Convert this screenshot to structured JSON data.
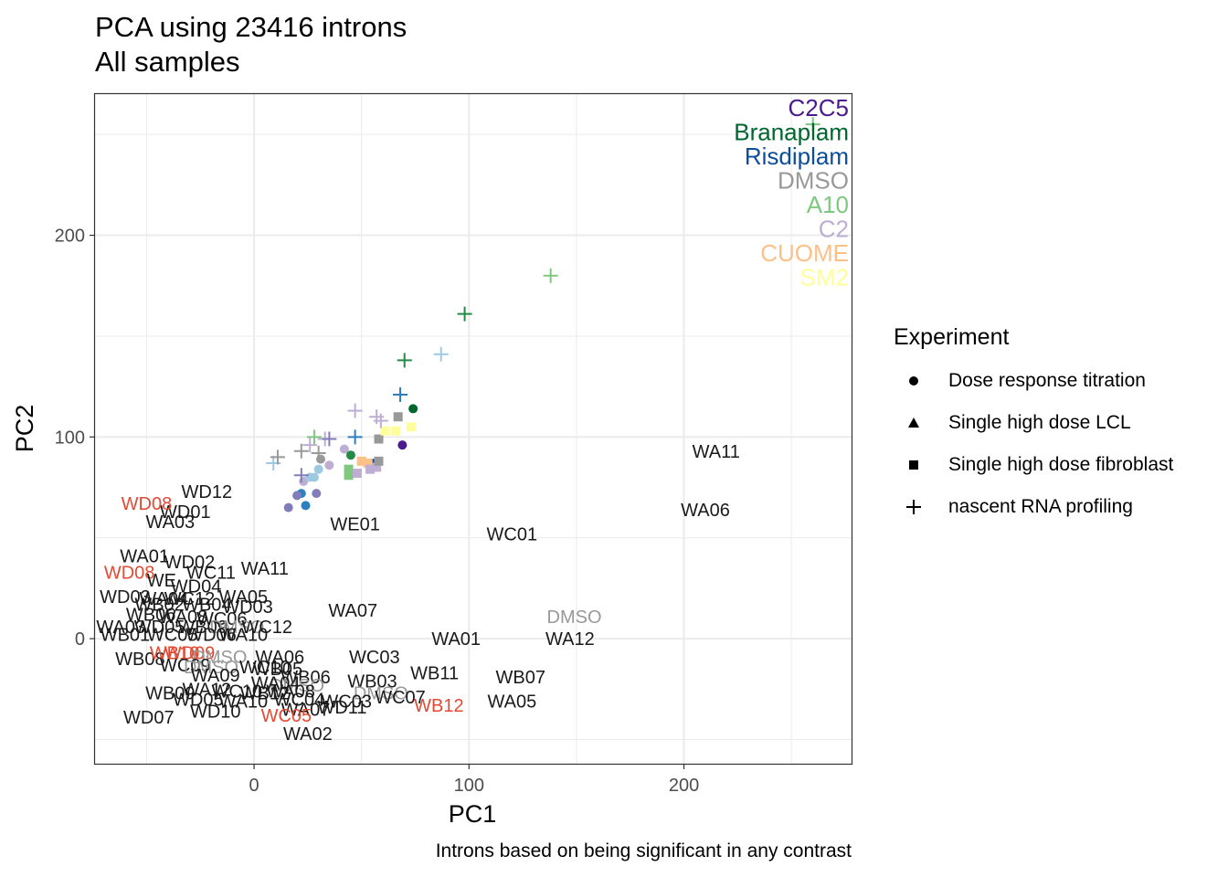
{
  "title": "PCA using 23416 introns",
  "subtitle": "All samples",
  "caption": "Introns based on being significant in any contrast",
  "chart_data": {
    "type": "scatter",
    "xlabel": "PC1",
    "ylabel": "PC2",
    "xlim": [
      -74,
      278
    ],
    "ylim": [
      -62,
      270
    ],
    "xticks": [
      0,
      100,
      200
    ],
    "yticks": [
      0,
      100,
      200
    ],
    "grid": true,
    "colors": {
      "C2C5": "#4b1a8c",
      "Branaplam": "#00662e",
      "Risdiplam": "#0d4e9a",
      "DMSO": "#999999",
      "A10": "#7fc97f",
      "C2": "#beaed4",
      "CUOME": "#fdc086",
      "SM2": "#ffff99",
      "blue": "#2d7fbf",
      "lightblue": "#9ecae1",
      "green": "#238b45",
      "purple": "#807dba",
      "text": "#1a1a1a",
      "red": "#e34a33"
    },
    "treatment_labels": [
      "C2C5",
      "Branaplam",
      "Risdiplam",
      "DMSO",
      "A10",
      "C2",
      "CUOME",
      "SM2"
    ],
    "legend": {
      "title": "Experiment",
      "entries": [
        "Dose response titration",
        "Single high dose LCL",
        "Single high dose fibroblast",
        "nascent RNA profiling"
      ],
      "position": "right"
    },
    "series": [
      {
        "name": "Dose response titration",
        "shape": "circle",
        "points": [
          {
            "x": 16,
            "y": 65,
            "c": "purple"
          },
          {
            "x": 22,
            "y": 72,
            "c": "blue"
          },
          {
            "x": 24,
            "y": 66,
            "c": "blue"
          },
          {
            "x": 29,
            "y": 72,
            "c": "purple"
          },
          {
            "x": 20,
            "y": 71,
            "c": "purple"
          },
          {
            "x": 23,
            "y": 78,
            "c": "C2"
          },
          {
            "x": 26,
            "y": 80,
            "c": "lightblue"
          },
          {
            "x": 28,
            "y": 80,
            "c": "lightblue"
          },
          {
            "x": 30,
            "y": 84,
            "c": "lightblue"
          },
          {
            "x": 31,
            "y": 89,
            "c": "DMSO"
          },
          {
            "x": 35,
            "y": 86,
            "c": "C2"
          },
          {
            "x": 42,
            "y": 94,
            "c": "C2"
          },
          {
            "x": 45,
            "y": 91,
            "c": "green"
          },
          {
            "x": 55,
            "y": 87,
            "c": "Risdiplam"
          },
          {
            "x": 69,
            "y": 96,
            "c": "C2C5"
          },
          {
            "x": 74,
            "y": 114,
            "c": "Branaplam"
          }
        ]
      },
      {
        "name": "Single high dose fibroblast",
        "shape": "square",
        "points": [
          {
            "x": 44,
            "y": 84,
            "c": "A10"
          },
          {
            "x": 44,
            "y": 81,
            "c": "A10"
          },
          {
            "x": 48,
            "y": 82,
            "c": "C2"
          },
          {
            "x": 50,
            "y": 88,
            "c": "CUOME"
          },
          {
            "x": 53,
            "y": 87,
            "c": "CUOME"
          },
          {
            "x": 54,
            "y": 84,
            "c": "C2"
          },
          {
            "x": 57,
            "y": 85,
            "c": "C2"
          },
          {
            "x": 58,
            "y": 99,
            "c": "DMSO"
          },
          {
            "x": 58,
            "y": 88,
            "c": "DMSO"
          },
          {
            "x": 61,
            "y": 103,
            "c": "SM2"
          },
          {
            "x": 66,
            "y": 103,
            "c": "SM2"
          },
          {
            "x": 67,
            "y": 110,
            "c": "DMSO"
          },
          {
            "x": 73,
            "y": 105,
            "c": "SM2"
          }
        ]
      },
      {
        "name": "nascent RNA profiling",
        "shape": "plus",
        "points": [
          {
            "x": 9,
            "y": 87,
            "c": "lightblue"
          },
          {
            "x": 11,
            "y": 90,
            "c": "DMSO"
          },
          {
            "x": 22,
            "y": 93,
            "c": "DMSO"
          },
          {
            "x": 22,
            "y": 81,
            "c": "purple"
          },
          {
            "x": 26,
            "y": 96,
            "c": "C2"
          },
          {
            "x": 28,
            "y": 100,
            "c": "A10"
          },
          {
            "x": 30,
            "y": 92,
            "c": "DMSO"
          },
          {
            "x": 33,
            "y": 99,
            "c": "C2"
          },
          {
            "x": 35,
            "y": 99,
            "c": "purple"
          },
          {
            "x": 47,
            "y": 100,
            "c": "blue"
          },
          {
            "x": 47,
            "y": 113,
            "c": "C2"
          },
          {
            "x": 57,
            "y": 110,
            "c": "C2"
          },
          {
            "x": 59,
            "y": 108,
            "c": "C2"
          },
          {
            "x": 68,
            "y": 121,
            "c": "blue"
          },
          {
            "x": 70,
            "y": 138,
            "c": "green"
          },
          {
            "x": 87,
            "y": 141,
            "c": "lightblue"
          },
          {
            "x": 98,
            "y": 161,
            "c": "green"
          },
          {
            "x": 138,
            "y": 180,
            "c": "A10"
          },
          {
            "x": 260,
            "y": 255,
            "c": "A10"
          }
        ]
      }
    ],
    "annotations": [
      {
        "text": "WA11",
        "x": 215,
        "y": 93,
        "c": "text"
      },
      {
        "text": "WA06",
        "x": 210,
        "y": 64,
        "c": "text"
      },
      {
        "text": "WC01",
        "x": 120,
        "y": 52,
        "c": "text"
      },
      {
        "text": "DMSO",
        "x": 149,
        "y": 11,
        "c": "DMSO"
      },
      {
        "text": "WA12",
        "x": 147,
        "y": 0,
        "c": "text"
      },
      {
        "text": "WA01",
        "x": 94,
        "y": 0,
        "c": "text"
      },
      {
        "text": "WB07",
        "x": 124,
        "y": -19,
        "c": "text"
      },
      {
        "text": "WA05",
        "x": 120,
        "y": -31,
        "c": "text"
      },
      {
        "text": "WB11",
        "x": 84,
        "y": -17,
        "c": "text"
      },
      {
        "text": "WB12",
        "x": 86,
        "y": -33,
        "c": "red"
      },
      {
        "text": "WC03",
        "x": 56,
        "y": -9,
        "c": "text"
      },
      {
        "text": "WB03",
        "x": 55,
        "y": -21,
        "c": "text"
      },
      {
        "text": "DMSO",
        "x": 59,
        "y": -27,
        "c": "DMSO"
      },
      {
        "text": "WC07",
        "x": 68,
        "y": -29,
        "c": "text"
      },
      {
        "text": "WC03",
        "x": 43,
        "y": -31,
        "c": "text"
      },
      {
        "text": "WD11",
        "x": 41,
        "y": -34,
        "c": "text"
      },
      {
        "text": "WA07",
        "x": 46,
        "y": 14,
        "c": "text"
      },
      {
        "text": "WE01",
        "x": 47,
        "y": 57,
        "c": "text"
      },
      {
        "text": "WD12",
        "x": -22,
        "y": 73,
        "c": "text"
      },
      {
        "text": "WD01",
        "x": -32,
        "y": 63,
        "c": "text"
      },
      {
        "text": "WD08",
        "x": -50,
        "y": 67,
        "c": "red"
      },
      {
        "text": "WA03",
        "x": -39,
        "y": 58,
        "c": "text"
      },
      {
        "text": "WA01",
        "x": -51,
        "y": 41,
        "c": "text"
      },
      {
        "text": "WD02",
        "x": -30,
        "y": 38,
        "c": "text"
      },
      {
        "text": "WC11",
        "x": -20,
        "y": 33,
        "c": "text"
      },
      {
        "text": "WA11",
        "x": 5,
        "y": 35,
        "c": "text"
      },
      {
        "text": "WD08",
        "x": -58,
        "y": 33,
        "c": "red"
      },
      {
        "text": "WE",
        "x": -43,
        "y": 29,
        "c": "text"
      },
      {
        "text": "WD04",
        "x": -27,
        "y": 26,
        "c": "text"
      },
      {
        "text": "WD03",
        "x": -60,
        "y": 21,
        "c": "text"
      },
      {
        "text": "WA04",
        "x": -42,
        "y": 20,
        "c": "text"
      },
      {
        "text": "WC12",
        "x": -30,
        "y": 20,
        "c": "text"
      },
      {
        "text": "WA05",
        "x": -5,
        "y": 21,
        "c": "text"
      },
      {
        "text": "WB02",
        "x": -44,
        "y": 17,
        "c": "text"
      },
      {
        "text": "WB04",
        "x": -22,
        "y": 17,
        "c": "text"
      },
      {
        "text": "WD03",
        "x": -3,
        "y": 16,
        "c": "text"
      },
      {
        "text": "WB06",
        "x": -48,
        "y": 12,
        "c": "text"
      },
      {
        "text": "WA08",
        "x": -33,
        "y": 11,
        "c": "text"
      },
      {
        "text": "WC06",
        "x": -15,
        "y": 10,
        "c": "text"
      },
      {
        "text": "WA03",
        "x": -62,
        "y": 6,
        "c": "text"
      },
      {
        "text": "WD05",
        "x": -44,
        "y": 6,
        "c": "text"
      },
      {
        "text": "WB09",
        "x": -24,
        "y": 6,
        "c": "text"
      },
      {
        "text": "DMSO",
        "x": -8,
        "y": 6,
        "c": "DMSO"
      },
      {
        "text": "WC12",
        "x": 6,
        "y": 6,
        "c": "text"
      },
      {
        "text": "WB01",
        "x": -60,
        "y": 2,
        "c": "text"
      },
      {
        "text": "WC05",
        "x": -38,
        "y": 2,
        "c": "text"
      },
      {
        "text": "WD06",
        "x": -20,
        "y": 2,
        "c": "text"
      },
      {
        "text": "WA10",
        "x": -5,
        "y": 2,
        "c": "text"
      },
      {
        "text": "WB08",
        "x": -53,
        "y": -10,
        "c": "text"
      },
      {
        "text": "WB10",
        "x": -37,
        "y": -7,
        "c": "red"
      },
      {
        "text": "WD09",
        "x": -30,
        "y": -7,
        "c": "red"
      },
      {
        "text": "DMSO",
        "x": -16,
        "y": -9,
        "c": "DMSO"
      },
      {
        "text": "WA06",
        "x": 12,
        "y": -9,
        "c": "text"
      },
      {
        "text": "WC09",
        "x": -32,
        "y": -13,
        "c": "text"
      },
      {
        "text": "DMSO",
        "x": -20,
        "y": -14,
        "c": "DMSO"
      },
      {
        "text": "WC10",
        "x": 5,
        "y": -14,
        "c": "text"
      },
      {
        "text": "WB05",
        "x": 11,
        "y": -15,
        "c": "text"
      },
      {
        "text": "WA09",
        "x": -18,
        "y": -18,
        "c": "text"
      },
      {
        "text": "WB06",
        "x": 24,
        "y": -19,
        "c": "text"
      },
      {
        "text": "DMSO",
        "x": 20,
        "y": -23,
        "c": "DMSO"
      },
      {
        "text": "WA04",
        "x": 10,
        "y": -22,
        "c": "text"
      },
      {
        "text": "WB09",
        "x": -39,
        "y": -27,
        "c": "text"
      },
      {
        "text": "WA12",
        "x": -22,
        "y": -25,
        "c": "text"
      },
      {
        "text": "WC10",
        "x": -8,
        "y": -26,
        "c": "text"
      },
      {
        "text": "WB12",
        "x": 5,
        "y": -27,
        "c": "text"
      },
      {
        "text": "WA08",
        "x": 17,
        "y": -26,
        "c": "text"
      },
      {
        "text": "WD05",
        "x": -26,
        "y": -30,
        "c": "text"
      },
      {
        "text": "WA10",
        "x": -5,
        "y": -31,
        "c": "text"
      },
      {
        "text": "WC04",
        "x": 21,
        "y": -30,
        "c": "text"
      },
      {
        "text": "WA07",
        "x": 24,
        "y": -35,
        "c": "text"
      },
      {
        "text": "WD10",
        "x": -18,
        "y": -36,
        "c": "text"
      },
      {
        "text": "WC05",
        "x": 15,
        "y": -38,
        "c": "red"
      },
      {
        "text": "WD07",
        "x": -49,
        "y": -39,
        "c": "text"
      },
      {
        "text": "WA02",
        "x": 25,
        "y": -47,
        "c": "text"
      }
    ]
  }
}
